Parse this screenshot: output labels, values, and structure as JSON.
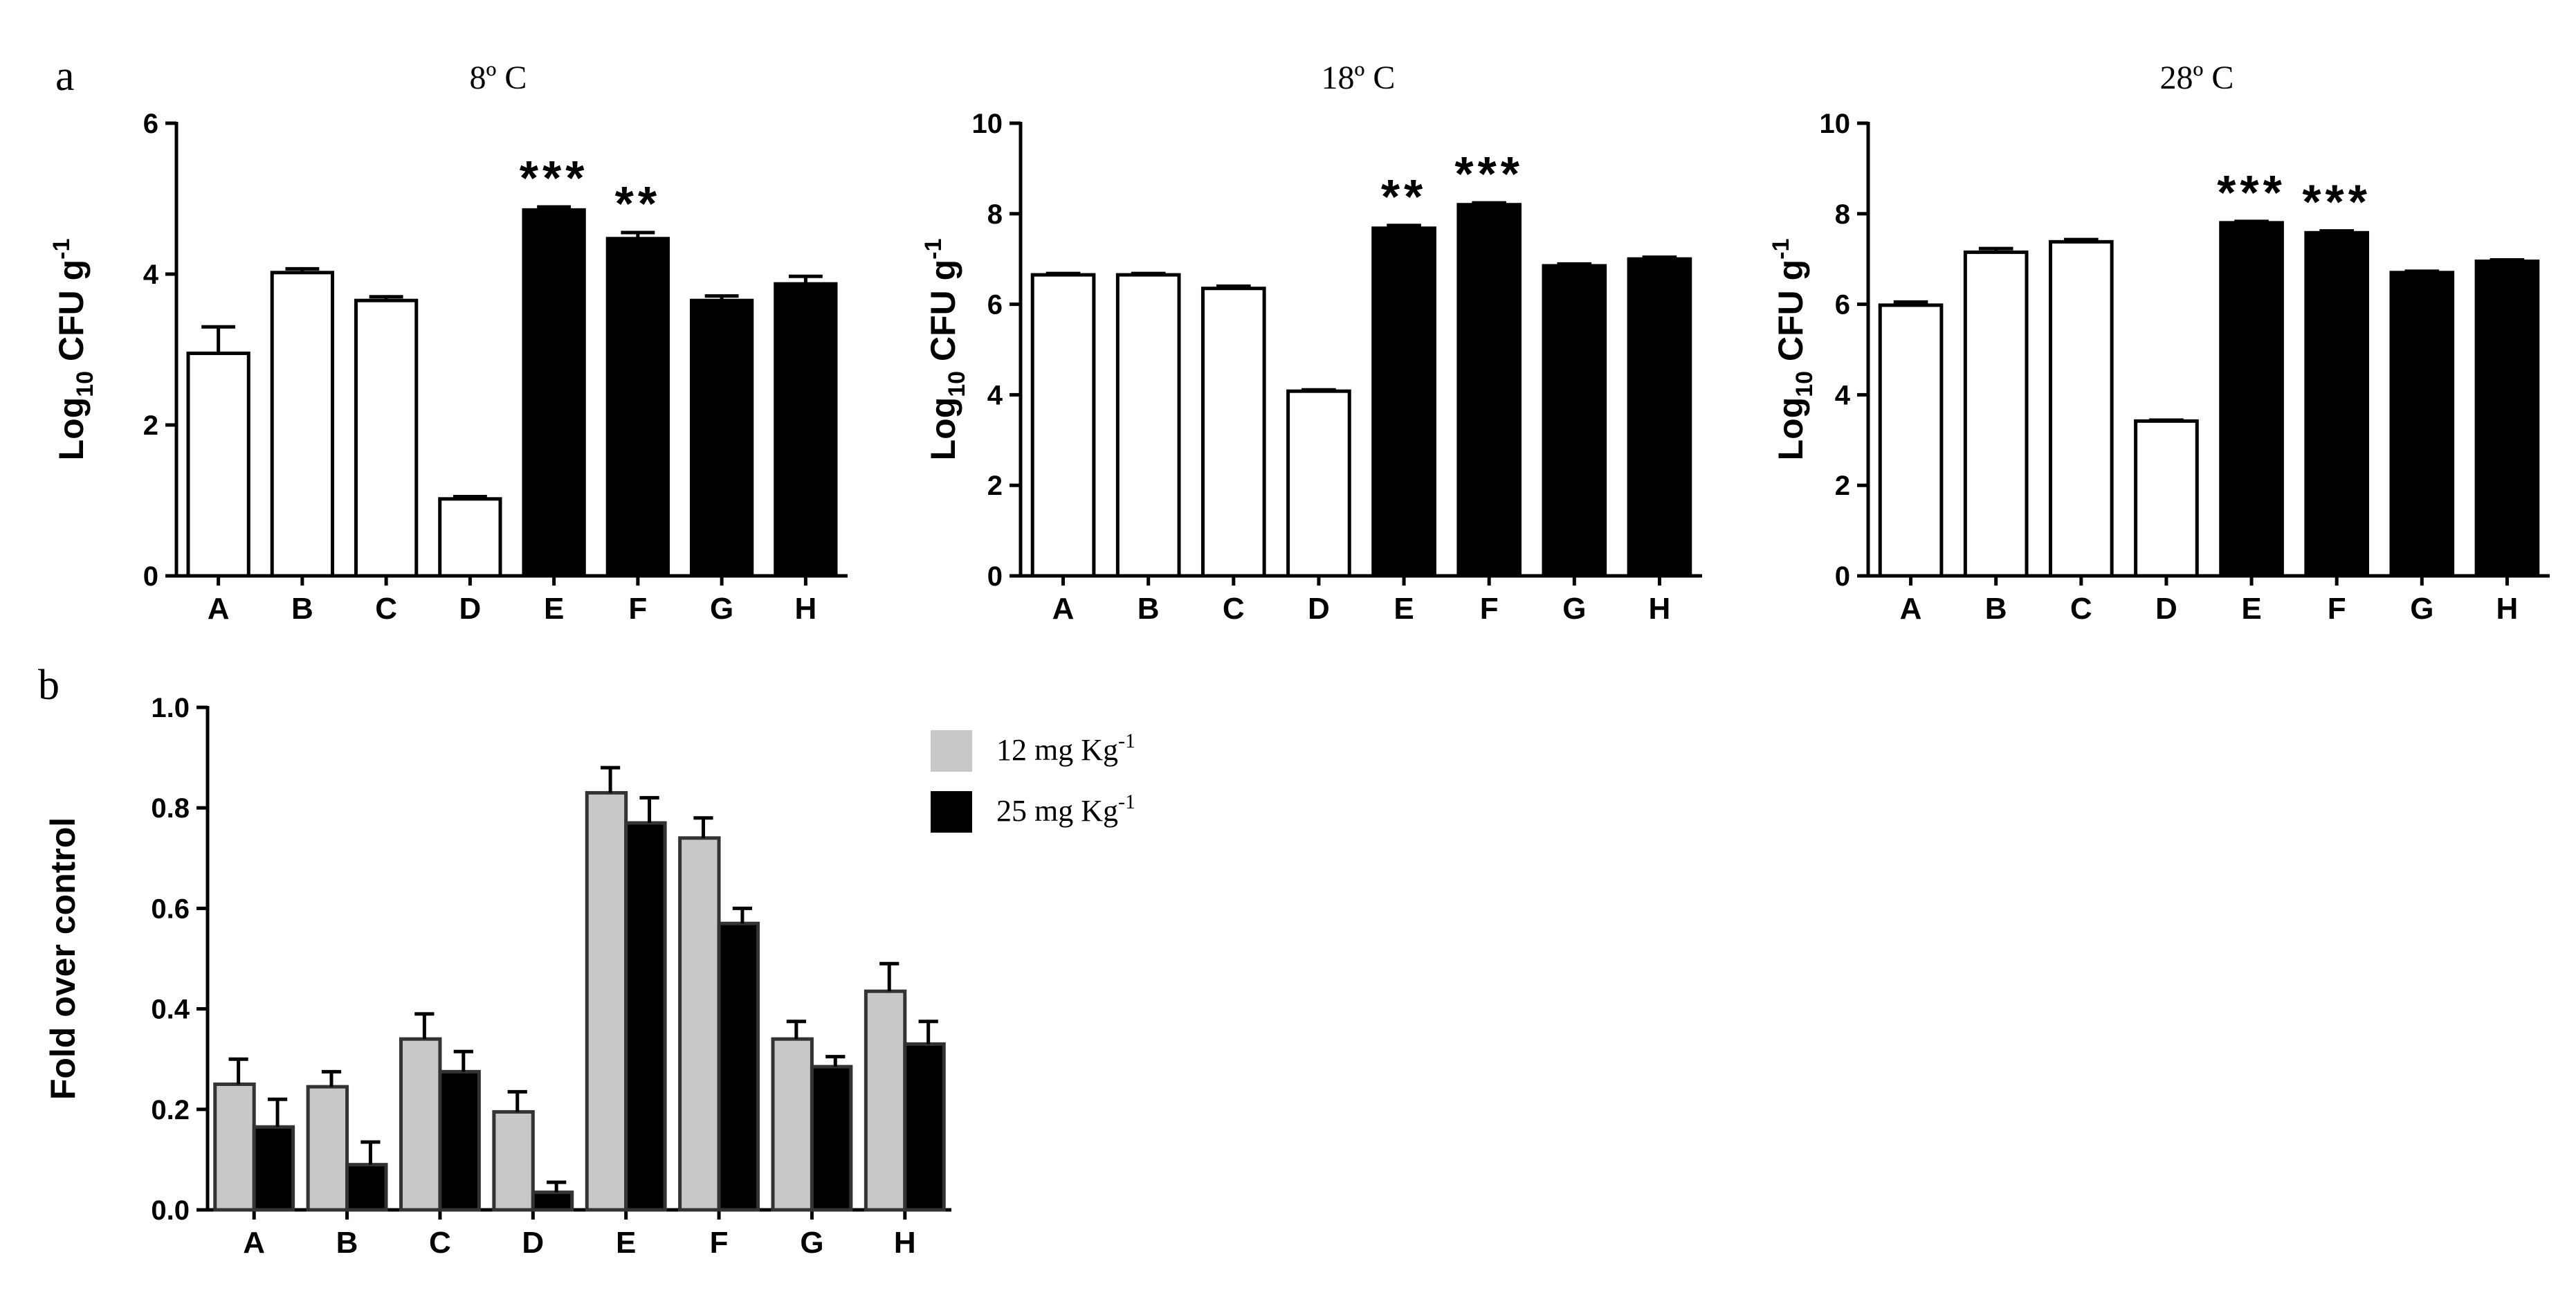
{
  "panel_labels": {
    "a": "a",
    "b": "b"
  },
  "legend": {
    "items": [
      {
        "label": "12 mg Kg",
        "sup": "-1",
        "color": "#c8c8c8"
      },
      {
        "label": "25 mg Kg",
        "sup": "-1",
        "color": "#000000"
      }
    ]
  },
  "chart_data": [
    {
      "type": "bar",
      "title": "8º C",
      "ylabel": "Log",
      "ylabel_sub": "10",
      "ylabel_rest": " CFU g",
      "ylabel_sup": "-1",
      "ylim": [
        0,
        6
      ],
      "yticks": [
        0,
        2,
        4,
        6
      ],
      "categories": [
        "A",
        "B",
        "C",
        "D",
        "E",
        "F",
        "G",
        "H"
      ],
      "values": [
        2.95,
        4.02,
        3.65,
        1.02,
        4.85,
        4.47,
        3.65,
        3.87
      ],
      "errors": [
        0.35,
        0.05,
        0.05,
        0.03,
        0.04,
        0.08,
        0.06,
        0.1
      ],
      "fill": [
        "#ffffff",
        "#ffffff",
        "#ffffff",
        "#ffffff",
        "#000000",
        "#000000",
        "#000000",
        "#000000"
      ],
      "annotations": [
        "",
        "",
        "",
        "",
        "***",
        "**",
        "",
        ""
      ]
    },
    {
      "type": "bar",
      "title": "18º C",
      "ylabel": "Log",
      "ylabel_sub": "10",
      "ylabel_rest": " CFU g",
      "ylabel_sup": "-1",
      "ylim": [
        0,
        10
      ],
      "yticks": [
        0,
        2,
        4,
        6,
        8,
        10
      ],
      "categories": [
        "A",
        "B",
        "C",
        "D",
        "E",
        "F",
        "G",
        "H"
      ],
      "values": [
        6.65,
        6.65,
        6.35,
        4.08,
        7.68,
        8.2,
        6.85,
        7.0
      ],
      "errors": [
        0.03,
        0.03,
        0.05,
        0.03,
        0.06,
        0.04,
        0.04,
        0.04
      ],
      "fill": [
        "#ffffff",
        "#ffffff",
        "#ffffff",
        "#ffffff",
        "#000000",
        "#000000",
        "#000000",
        "#000000"
      ],
      "annotations": [
        "",
        "",
        "",
        "",
        "**",
        "***",
        "",
        ""
      ]
    },
    {
      "type": "bar",
      "title": "28º C",
      "ylabel": "Log",
      "ylabel_sub": "10",
      "ylabel_rest": " CFU g",
      "ylabel_sup": "-1",
      "ylim": [
        0,
        10
      ],
      "yticks": [
        0,
        2,
        4,
        6,
        8,
        10
      ],
      "categories": [
        "A",
        "B",
        "C",
        "D",
        "E",
        "F",
        "G",
        "H"
      ],
      "values": [
        5.98,
        7.15,
        7.38,
        3.42,
        7.8,
        7.58,
        6.7,
        6.95
      ],
      "errors": [
        0.07,
        0.08,
        0.05,
        0.02,
        0.03,
        0.04,
        0.03,
        0.03
      ],
      "fill": [
        "#ffffff",
        "#ffffff",
        "#ffffff",
        "#ffffff",
        "#000000",
        "#000000",
        "#000000",
        "#000000"
      ],
      "annotations": [
        "",
        "",
        "",
        "",
        "***",
        "***",
        "",
        ""
      ]
    },
    {
      "type": "bar",
      "title": "",
      "ylabel": "Fold over control",
      "ylim": [
        0,
        1
      ],
      "yticks": [
        "0.0",
        "0.2",
        "0.4",
        "0.6",
        "0.8",
        "1.0"
      ],
      "categories": [
        "A",
        "B",
        "C",
        "D",
        "E",
        "F",
        "G",
        "H"
      ],
      "series": [
        {
          "name": "12 mg Kg-1",
          "color": "#c8c8c8",
          "values": [
            0.25,
            0.245,
            0.34,
            0.195,
            0.83,
            0.74,
            0.34,
            0.435
          ],
          "errors": [
            0.05,
            0.03,
            0.05,
            0.04,
            0.05,
            0.04,
            0.035,
            0.055
          ]
        },
        {
          "name": "25 mg Kg-1",
          "color": "#000000",
          "values": [
            0.165,
            0.09,
            0.275,
            0.035,
            0.77,
            0.57,
            0.285,
            0.33
          ],
          "errors": [
            0.055,
            0.045,
            0.04,
            0.02,
            0.05,
            0.03,
            0.02,
            0.045
          ]
        }
      ]
    }
  ]
}
